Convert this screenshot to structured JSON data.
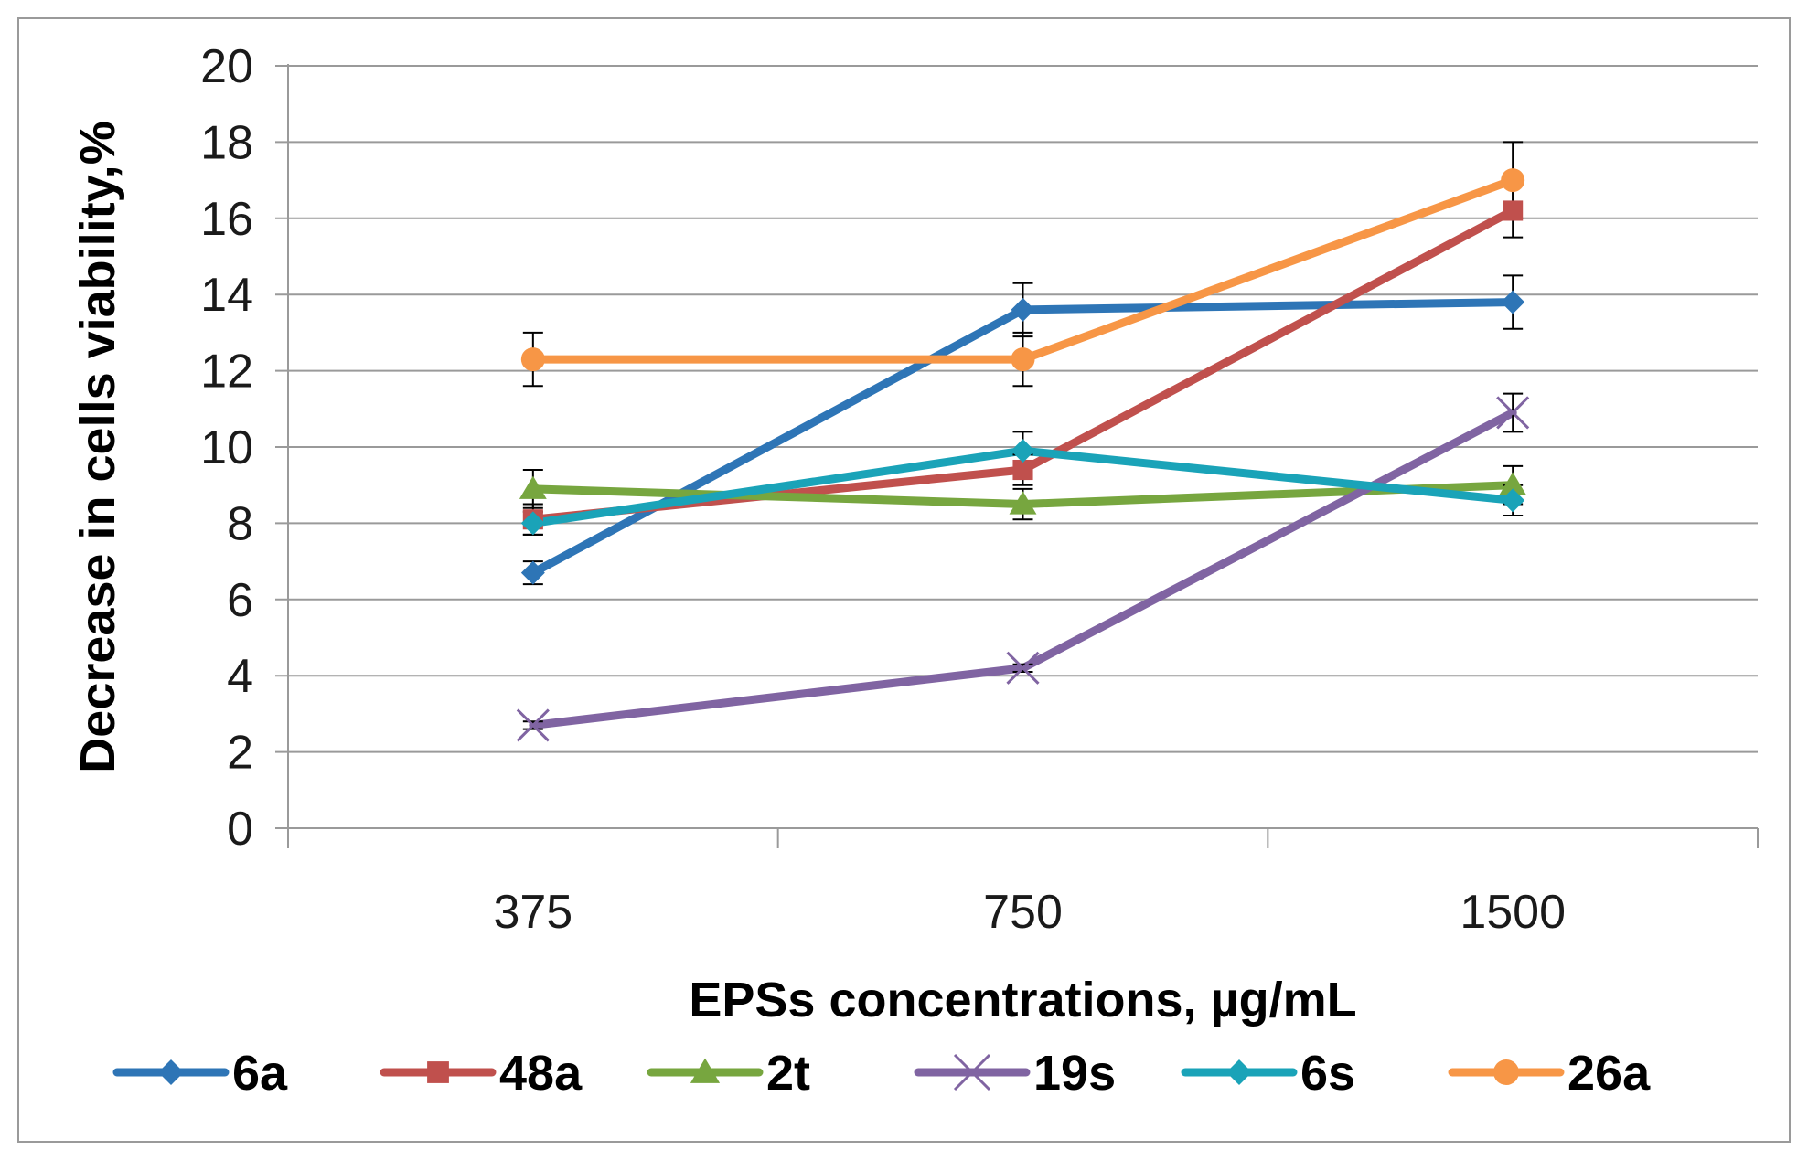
{
  "chart_data": {
    "type": "line",
    "title": "",
    "xlabel": "EPSs concentrations, µg/mL",
    "ylabel": "Decrease in cells  viability,%",
    "categories": [
      "375",
      "750",
      "1500"
    ],
    "ylim": [
      0,
      20
    ],
    "yticks": [
      "0",
      "2",
      "4",
      "6",
      "8",
      "10",
      "12",
      "14",
      "16",
      "18",
      "20"
    ],
    "grid": true,
    "legend_position": "bottom",
    "series": [
      {
        "name": "6a",
        "values": [
          6.7,
          13.6,
          13.8
        ],
        "errors": [
          0.3,
          0.7,
          0.7
        ],
        "color": "#2e75b6",
        "marker": "diamond"
      },
      {
        "name": "48a",
        "values": [
          8.1,
          9.4,
          16.2
        ],
        "errors": [
          0.4,
          0.4,
          0.7
        ],
        "color": "#c0504d",
        "marker": "square"
      },
      {
        "name": "2t",
        "values": [
          8.9,
          8.5,
          9.0
        ],
        "errors": [
          0.5,
          0.4,
          0.5
        ],
        "color": "#77a63f",
        "marker": "triangle"
      },
      {
        "name": "19s",
        "values": [
          2.7,
          4.2,
          10.9
        ],
        "errors": [
          0.1,
          0.1,
          0.5
        ],
        "color": "#8064a2",
        "marker": "x"
      },
      {
        "name": "6s",
        "values": [
          8.0,
          9.9,
          8.6
        ],
        "errors": [
          0.3,
          0.5,
          0.4
        ],
        "color": "#1aa3b8",
        "marker": "diamond"
      },
      {
        "name": "26a",
        "values": [
          12.3,
          12.3,
          17.0
        ],
        "errors": [
          0.7,
          0.7,
          1.0
        ],
        "color": "#f79646",
        "marker": "circle"
      }
    ]
  }
}
